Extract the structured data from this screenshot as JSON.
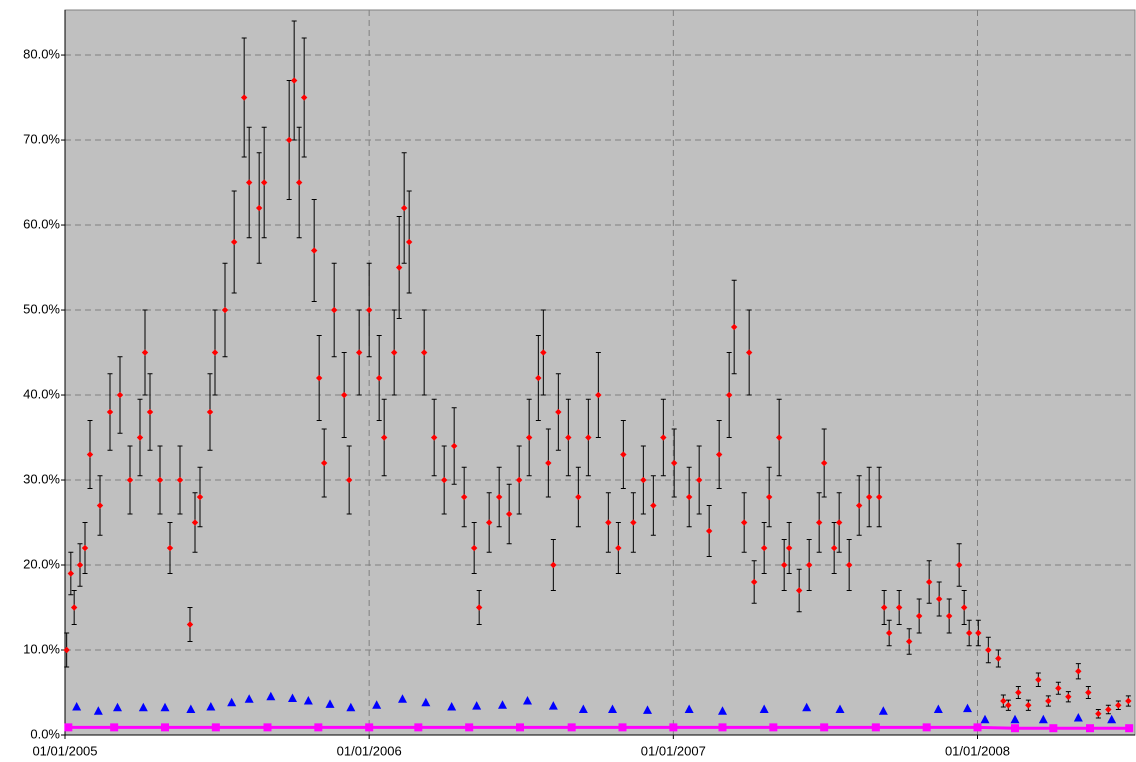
{
  "chart_data": {
    "type": "scatter",
    "xlim": [
      "2005-01-01",
      "2008-07-08"
    ],
    "xticks": [
      {
        "value": "2005-01-01",
        "label": "01/01/2005"
      },
      {
        "value": "2006-01-01",
        "label": "01/01/2006"
      },
      {
        "value": "2007-01-01",
        "label": "01/01/2007"
      },
      {
        "value": "2008-01-01",
        "label": "01/01/2008"
      }
    ],
    "ylim": [
      0,
      85.3
    ],
    "yticks": [
      {
        "value": 0,
        "label": "0.0%"
      },
      {
        "value": 10,
        "label": "10.0%"
      },
      {
        "value": 20,
        "label": "20.0%"
      },
      {
        "value": 30,
        "label": "30.0%"
      },
      {
        "value": 40,
        "label": "40.0%"
      },
      {
        "value": 50,
        "label": "50.0%"
      },
      {
        "value": 60,
        "label": "60.0%"
      },
      {
        "value": 70,
        "label": "70.0%"
      },
      {
        "value": 80,
        "label": "80.0%"
      }
    ],
    "grid": true,
    "background": "#c0c0c0",
    "series": [
      {
        "color": "#ff0000",
        "marker": "diamond",
        "error_color": "#000000",
        "x": [
          "2005-01-03",
          "2005-01-08",
          "2005-01-12",
          "2005-01-19",
          "2005-01-25",
          "2005-01-31",
          "2005-02-12",
          "2005-02-24",
          "2005-03-08",
          "2005-03-20",
          "2005-04-01",
          "2005-04-07",
          "2005-04-13",
          "2005-04-25",
          "2005-05-07",
          "2005-05-19",
          "2005-05-31",
          "2005-06-06",
          "2005-06-12",
          "2005-06-24",
          "2005-06-30",
          "2005-07-12",
          "2005-07-23",
          "2005-08-04",
          "2005-08-10",
          "2005-08-22",
          "2005-08-28",
          "2005-09-27",
          "2005-10-03",
          "2005-10-09",
          "2005-10-15",
          "2005-10-27",
          "2005-11-02",
          "2005-11-08",
          "2005-11-20",
          "2005-12-02",
          "2005-12-08",
          "2005-12-20",
          "2006-01-01",
          "2006-01-13",
          "2006-01-19",
          "2006-01-31",
          "2006-02-06",
          "2006-02-12",
          "2006-02-18",
          "2006-03-08",
          "2006-03-20",
          "2006-04-01",
          "2006-04-13",
          "2006-04-25",
          "2006-05-07",
          "2006-05-13",
          "2006-05-25",
          "2006-06-06",
          "2006-06-18",
          "2006-06-30",
          "2006-07-12",
          "2006-07-23",
          "2006-07-29",
          "2006-08-04",
          "2006-08-10",
          "2006-08-16",
          "2006-08-28",
          "2006-09-09",
          "2006-09-21",
          "2006-10-03",
          "2006-10-15",
          "2006-10-27",
          "2006-11-02",
          "2006-11-14",
          "2006-11-26",
          "2006-12-08",
          "2006-12-20",
          "2007-01-02",
          "2007-01-20",
          "2007-02-01",
          "2007-02-13",
          "2007-02-25",
          "2007-03-09",
          "2007-03-15",
          "2007-03-27",
          "2007-04-02",
          "2007-04-08",
          "2007-04-20",
          "2007-04-26",
          "2007-05-08",
          "2007-05-14",
          "2007-05-20",
          "2007-06-01",
          "2007-06-13",
          "2007-06-25",
          "2007-07-01",
          "2007-07-13",
          "2007-07-19",
          "2007-07-31",
          "2007-08-12",
          "2007-08-24",
          "2007-09-05",
          "2007-09-11",
          "2007-09-17",
          "2007-09-29",
          "2007-10-11",
          "2007-10-23",
          "2007-11-04",
          "2007-11-16",
          "2007-11-28",
          "2007-12-10",
          "2007-12-16",
          "2007-12-22",
          "2008-01-02",
          "2008-01-14",
          "2008-01-26",
          "2008-02-01",
          "2008-02-07",
          "2008-02-19",
          "2008-03-02",
          "2008-03-14",
          "2008-03-26",
          "2008-04-07",
          "2008-04-19",
          "2008-05-01",
          "2008-05-13",
          "2008-05-25",
          "2008-06-06",
          "2008-06-18",
          "2008-06-30"
        ],
        "values": [
          10,
          19,
          15,
          20,
          22,
          33,
          27,
          38,
          40,
          30,
          35,
          45,
          38,
          30,
          22,
          30,
          13,
          25,
          28,
          38,
          45,
          50,
          58,
          75,
          65,
          62,
          65,
          70,
          77,
          65,
          75,
          57,
          42,
          32,
          50,
          40,
          30,
          45,
          50,
          42,
          35,
          45,
          55,
          62,
          58,
          45,
          35,
          30,
          34,
          28,
          22,
          15,
          25,
          28,
          26,
          30,
          35,
          42,
          45,
          32,
          20,
          38,
          35,
          28,
          35,
          40,
          25,
          22,
          33,
          25,
          30,
          27,
          35,
          32,
          28,
          30,
          24,
          33,
          40,
          48,
          25,
          45,
          18,
          22,
          28,
          35,
          20,
          22,
          17,
          20,
          25,
          32,
          22,
          25,
          20,
          27,
          28,
          28,
          15,
          12,
          15,
          11,
          14,
          18,
          16,
          14,
          20,
          15,
          12,
          12,
          10,
          9,
          4,
          3.5,
          5,
          3.5,
          6.5,
          4,
          5.5,
          4.5,
          7.5,
          5,
          2.5,
          3,
          3.5,
          4
        ],
        "errors": [
          2,
          2.5,
          2,
          2.5,
          3,
          4,
          3.5,
          4.5,
          4.5,
          4,
          4.5,
          5,
          4.5,
          4,
          3,
          4,
          2,
          3.5,
          3.5,
          4.5,
          5,
          5.5,
          6,
          7,
          6.5,
          6.5,
          6.5,
          7,
          7,
          6.5,
          7,
          6,
          5,
          4,
          5.5,
          5,
          4,
          5,
          5.5,
          5,
          4.5,
          5,
          6,
          6.5,
          6,
          5,
          4.5,
          4,
          4.5,
          3.5,
          3,
          2,
          3.5,
          3.5,
          3.5,
          4,
          4.5,
          5,
          5,
          4,
          3,
          4.5,
          4.5,
          3.5,
          4.5,
          5,
          3.5,
          3,
          4,
          3.5,
          4,
          3.5,
          4.5,
          4,
          3.5,
          4,
          3,
          4,
          5,
          5.5,
          3.5,
          5,
          2.5,
          3,
          3.5,
          4.5,
          3,
          3,
          2.5,
          3,
          3.5,
          4,
          3,
          3.5,
          3,
          3.5,
          3.5,
          3.5,
          2,
          1.5,
          2,
          1.5,
          2,
          2.5,
          2,
          2,
          2.5,
          2,
          1.5,
          1.5,
          1.5,
          1,
          0.7,
          0.6,
          0.7,
          0.6,
          0.8,
          0.6,
          0.7,
          0.6,
          0.9,
          0.7,
          0.5,
          0.5,
          0.5,
          0.6
        ]
      },
      {
        "color": "#0000ff",
        "marker": "triangle",
        "x": [
          "2005-01-15",
          "2005-02-10",
          "2005-03-05",
          "2005-04-05",
          "2005-05-01",
          "2005-06-01",
          "2005-06-25",
          "2005-07-20",
          "2005-08-10",
          "2005-09-05",
          "2005-10-01",
          "2005-10-20",
          "2005-11-15",
          "2005-12-10",
          "2006-01-10",
          "2006-02-10",
          "2006-03-10",
          "2006-04-10",
          "2006-05-10",
          "2006-06-10",
          "2006-07-10",
          "2006-08-10",
          "2006-09-15",
          "2006-10-20",
          "2006-12-01",
          "2007-01-20",
          "2007-03-01",
          "2007-04-20",
          "2007-06-10",
          "2007-07-20",
          "2007-09-10",
          "2007-11-15",
          "2007-12-20",
          "2008-01-10",
          "2008-02-15",
          "2008-03-20",
          "2008-05-01",
          "2008-06-10"
        ],
        "values": [
          3.3,
          2.8,
          3.2,
          3.2,
          3.2,
          3,
          3.3,
          3.8,
          4.2,
          4.5,
          4.3,
          4,
          3.6,
          3.2,
          3.5,
          4.2,
          3.8,
          3.3,
          3.4,
          3.5,
          4,
          3.4,
          3,
          3,
          2.9,
          3,
          2.8,
          3,
          3.2,
          3,
          2.8,
          3,
          3.1,
          1.8,
          1.8,
          1.8,
          2,
          1.8
        ]
      },
      {
        "color": "#ff00ff",
        "marker": "square",
        "line": true,
        "x": [
          "2005-01-05",
          "2005-03-01",
          "2005-05-01",
          "2005-07-01",
          "2005-09-01",
          "2005-11-01",
          "2006-01-01",
          "2006-03-01",
          "2006-05-01",
          "2006-07-01",
          "2006-09-01",
          "2006-11-01",
          "2007-01-01",
          "2007-03-01",
          "2007-05-01",
          "2007-07-01",
          "2007-09-01",
          "2007-11-01",
          "2008-01-01",
          "2008-02-15",
          "2008-04-01",
          "2008-05-15",
          "2008-07-01"
        ],
        "values": [
          0.9,
          0.9,
          0.9,
          0.9,
          0.9,
          0.9,
          0.9,
          0.9,
          0.9,
          0.9,
          0.9,
          0.9,
          0.9,
          0.9,
          0.9,
          0.9,
          0.9,
          0.9,
          0.9,
          0.8,
          0.8,
          0.8,
          0.8
        ]
      }
    ]
  }
}
